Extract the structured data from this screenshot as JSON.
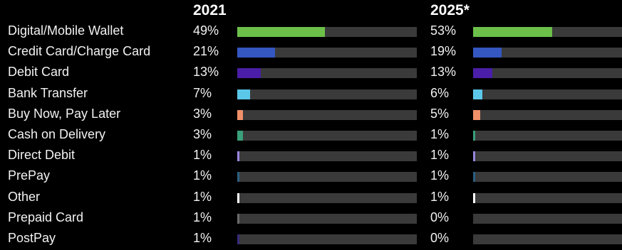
{
  "chart_data": {
    "type": "bar",
    "title": "",
    "xlabel": "",
    "ylabel": "",
    "xlim": [
      0,
      100
    ],
    "grid": false,
    "columns": [
      "2021",
      "2025*"
    ],
    "categories": [
      "Digital/Mobile Wallet",
      "Credit Card/Charge Card",
      "Debit Card",
      "Bank Transfer",
      "Buy Now, Pay Later",
      "Cash on Delivery",
      "Direct Debit",
      "PrePay",
      "Other",
      "Prepaid Card",
      "PostPay"
    ],
    "colors": [
      "#6cc04a",
      "#3557c2",
      "#4a1ea8",
      "#5bc8ea",
      "#f0906a",
      "#3aa07a",
      "#9a85e0",
      "#2a5f7f",
      "#ffffff",
      "#6a6a6a",
      "#3a2a7a"
    ],
    "series": [
      {
        "name": "2021",
        "values": [
          49,
          21,
          13,
          7,
          3,
          3,
          1,
          1,
          1,
          1,
          1
        ],
        "labels": [
          "49%",
          "21%",
          "13%",
          "7%",
          "3%",
          "3%",
          "1%",
          "1%",
          "1%",
          "1%",
          "1%"
        ]
      },
      {
        "name": "2025*",
        "values": [
          53,
          19,
          13,
          6,
          5,
          1,
          1,
          1,
          1,
          0,
          0
        ],
        "labels": [
          "53%",
          "19%",
          "13%",
          "6%",
          "5%",
          "1%",
          "1%",
          "1%",
          "1%",
          "0%",
          "0%"
        ]
      }
    ]
  }
}
